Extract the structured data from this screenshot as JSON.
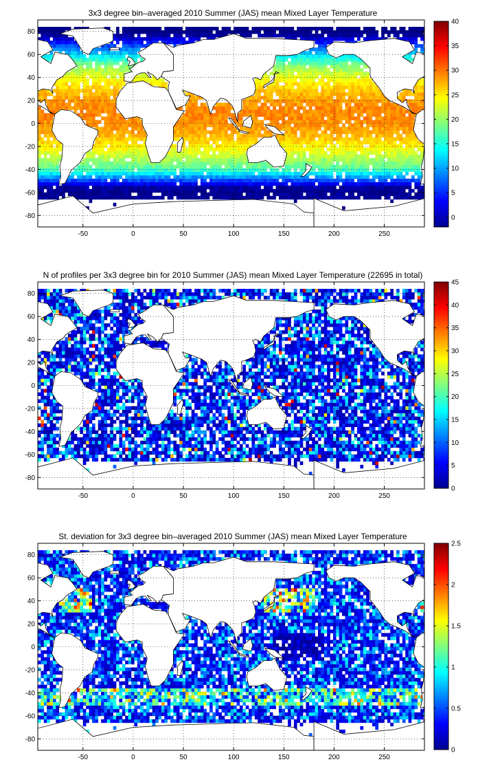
{
  "chart_data": [
    {
      "type": "heatmap",
      "title": "3x3 degree bin–averaged 2010 Summer (JAS) mean Mixed Layer Temperature",
      "xlabel": "",
      "ylabel": "",
      "xlim": [
        -95,
        290
      ],
      "ylim": [
        -90,
        90
      ],
      "x_ticks": [
        -50,
        0,
        50,
        100,
        150,
        200,
        250
      ],
      "y_ticks": [
        80,
        60,
        40,
        20,
        0,
        -20,
        -40,
        -60,
        -80
      ],
      "grid": true,
      "colormap": "jet",
      "colorbar": {
        "range": [
          -2,
          40
        ],
        "ticks": [
          40,
          35,
          30,
          25,
          20,
          15,
          10,
          5,
          0
        ]
      },
      "field": "temperature",
      "x_bin_step": 3,
      "y_bin_step": 3
    },
    {
      "type": "heatmap",
      "title": "N of profiles per 3x3 degree bin for 2010 Summer (JAS) mean Mixed Layer Temperature  (22695 in total)",
      "xlabel": "",
      "ylabel": "",
      "xlim": [
        -95,
        290
      ],
      "ylim": [
        -90,
        90
      ],
      "x_ticks": [
        -50,
        0,
        50,
        100,
        150,
        200,
        250
      ],
      "y_ticks": [
        80,
        60,
        40,
        20,
        0,
        -20,
        -40,
        -60,
        -80
      ],
      "grid": true,
      "colormap": "jet",
      "colorbar": {
        "range": [
          0,
          45
        ],
        "ticks": [
          45,
          40,
          35,
          30,
          25,
          20,
          15,
          10,
          5,
          0
        ]
      },
      "field": "count",
      "x_bin_step": 3,
      "y_bin_step": 3
    },
    {
      "type": "heatmap",
      "title": "St. deviation for 3x3 degree bin–averaged 2010 Summer (JAS) mean Mixed Layer Temperature",
      "xlabel": "",
      "ylabel": "",
      "xlim": [
        -95,
        290
      ],
      "ylim": [
        -90,
        90
      ],
      "x_ticks": [
        -50,
        0,
        50,
        100,
        150,
        200,
        250
      ],
      "y_ticks": [
        80,
        60,
        40,
        20,
        0,
        -20,
        -40,
        -60,
        -80
      ],
      "grid": true,
      "colormap": "jet",
      "colorbar": {
        "range": [
          0,
          2.5
        ],
        "ticks": [
          2.5,
          2,
          1.5,
          1,
          0.5,
          0
        ]
      },
      "field": "stdev",
      "x_bin_step": 3,
      "y_bin_step": 3
    }
  ]
}
